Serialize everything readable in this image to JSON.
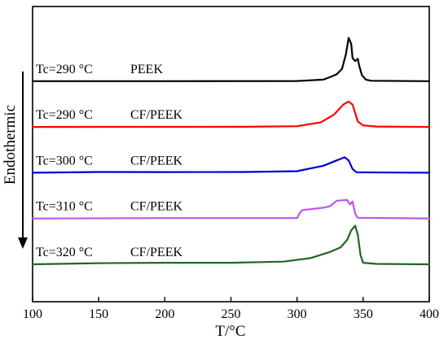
{
  "chart_data": {
    "type": "line",
    "title": "",
    "xlabel": "T/°C",
    "ylabel": "",
    "xlim": [
      100,
      400
    ],
    "x_ticks": [
      100,
      150,
      200,
      250,
      300,
      350,
      400
    ],
    "grid": false,
    "direction_annotation": "Endothermic",
    "series": [
      {
        "condition": "Tc=290 °C",
        "material": "PEEK",
        "color": "#000000",
        "offset": 4,
        "points": [
          [
            100,
            0
          ],
          [
            200,
            0
          ],
          [
            300,
            0.02
          ],
          [
            320,
            0.2
          ],
          [
            326,
            0.6
          ],
          [
            330,
            0.9
          ],
          [
            334,
            1.6
          ],
          [
            337,
            3.5
          ],
          [
            339,
            5.6
          ],
          [
            341,
            4.8
          ],
          [
            342,
            3.0
          ],
          [
            344,
            2.6
          ],
          [
            346,
            2.9
          ],
          [
            347,
            2.0
          ],
          [
            349,
            0.8
          ],
          [
            352,
            0.2
          ],
          [
            356,
            0.05
          ],
          [
            400,
            0
          ]
        ]
      },
      {
        "condition": "Tc=290 °C",
        "material": "CF/PEEK",
        "color": "#ff0000",
        "offset": 3,
        "points": [
          [
            100,
            0
          ],
          [
            260,
            0.02
          ],
          [
            300,
            0.1
          ],
          [
            318,
            0.6
          ],
          [
            328,
            1.6
          ],
          [
            335,
            2.9
          ],
          [
            339,
            3.3
          ],
          [
            342,
            2.9
          ],
          [
            344,
            1.8
          ],
          [
            346,
            0.7
          ],
          [
            350,
            0.2
          ],
          [
            360,
            0.05
          ],
          [
            400,
            0
          ]
        ]
      },
      {
        "condition": "Tc=300 °C",
        "material": "CF/PEEK",
        "color": "#0000cc",
        "offset": 2,
        "points": [
          [
            100,
            0
          ],
          [
            150,
            0.1
          ],
          [
            200,
            0.08
          ],
          [
            260,
            0.1
          ],
          [
            300,
            0.2
          ],
          [
            320,
            0.9
          ],
          [
            330,
            1.6
          ],
          [
            336,
            2.0
          ],
          [
            339,
            1.6
          ],
          [
            342,
            0.5
          ],
          [
            345,
            0.05
          ],
          [
            400,
            0
          ]
        ]
      },
      {
        "condition": "Tc=310 °C",
        "material": "CF/PEEK",
        "color": "#bb55ee",
        "offset": 1,
        "points": [
          [
            100,
            0
          ],
          [
            200,
            0.05
          ],
          [
            300,
            0.05
          ],
          [
            302,
            0.7
          ],
          [
            304,
            1.1
          ],
          [
            310,
            1.2
          ],
          [
            320,
            1.4
          ],
          [
            325,
            1.6
          ],
          [
            330,
            2.3
          ],
          [
            338,
            2.4
          ],
          [
            340,
            1.8
          ],
          [
            342,
            2.2
          ],
          [
            344,
            0.6
          ],
          [
            346,
            0.1
          ],
          [
            400,
            0
          ]
        ]
      },
      {
        "condition": "Tc=320 °C",
        "material": "CF/PEEK",
        "color": "#226622",
        "offset": 0,
        "points": [
          [
            100,
            0
          ],
          [
            150,
            0.15
          ],
          [
            200,
            0.2
          ],
          [
            250,
            0.2
          ],
          [
            290,
            0.35
          ],
          [
            310,
            0.8
          ],
          [
            325,
            1.6
          ],
          [
            333,
            2.2
          ],
          [
            338,
            3.2
          ],
          [
            341,
            4.4
          ],
          [
            344,
            5.0
          ],
          [
            346,
            3.8
          ],
          [
            348,
            1.2
          ],
          [
            350,
            0.2
          ],
          [
            360,
            0.05
          ],
          [
            400,
            0
          ]
        ]
      }
    ]
  }
}
